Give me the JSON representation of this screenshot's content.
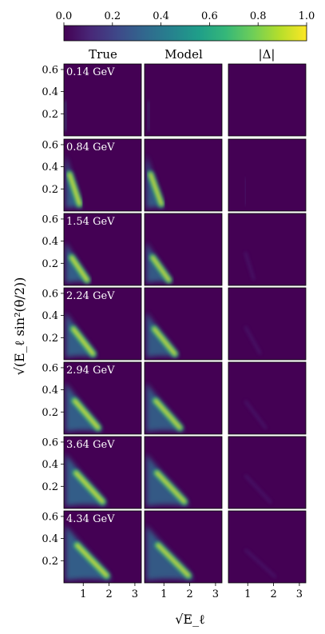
{
  "colors": {
    "viridis": [
      "#440154",
      "#482878",
      "#3e4989",
      "#31688e",
      "#26828e",
      "#1f9e89",
      "#35b779",
      "#6ece58",
      "#b5de2b",
      "#fde725"
    ],
    "background": "#440154"
  },
  "chart_data": {
    "type": "heatmap",
    "colorbar": {
      "min": 0.0,
      "max": 1.0,
      "ticks": [
        0.0,
        0.2,
        0.4,
        0.6,
        0.8,
        1.0
      ],
      "tick_labels": [
        "0.0",
        "0.2",
        "0.4",
        "0.6",
        "0.8",
        "1.0"
      ],
      "colormap": "viridis",
      "position": "top"
    },
    "columns": [
      "True",
      "Model",
      "|Δ|"
    ],
    "rows": [
      {
        "label": "0.14 GeV",
        "energy": 0.14
      },
      {
        "label": "0.84 GeV",
        "energy": 0.84
      },
      {
        "label": "1.54 GeV",
        "energy": 1.54
      },
      {
        "label": "2.24 GeV",
        "energy": 2.24
      },
      {
        "label": "2.94 GeV",
        "energy": 2.94
      },
      {
        "label": "3.64 GeV",
        "energy": 3.64
      },
      {
        "label": "4.34 GeV",
        "energy": 4.34
      }
    ],
    "xlabel": "√E_ℓ",
    "ylabel": "√(E_ℓ sin²(θ/2))",
    "xlim": [
      0.25,
      3.25
    ],
    "ylim": [
      0.0,
      0.65
    ],
    "x_ticks": [
      1,
      2,
      3
    ],
    "x_tick_labels": [
      "1",
      "2",
      "3"
    ],
    "y_ticks": [
      0.2,
      0.4,
      0.6
    ],
    "y_tick_labels": [
      "0.2",
      "0.4",
      "0.6"
    ]
  }
}
